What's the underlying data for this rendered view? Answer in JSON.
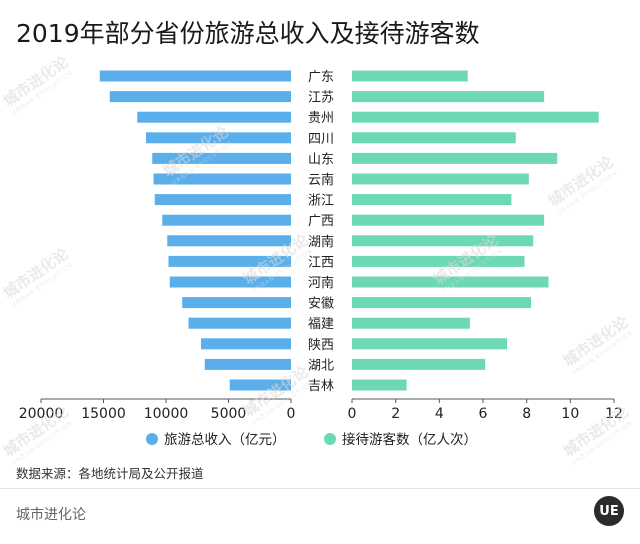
{
  "chart_data": {
    "type": "bar",
    "title": "2019年部分省份旅游总收入及接待游客数",
    "categories": [
      "广东",
      "江苏",
      "贵州",
      "四川",
      "山东",
      "云南",
      "浙江",
      "广西",
      "湖南",
      "江西",
      "河南",
      "安徽",
      "福建",
      "陕西",
      "湖北",
      "吉林"
    ],
    "series": [
      {
        "name": "旅游总收入（亿元）",
        "color": "#5aaeea",
        "values": [
          15300,
          14500,
          12300,
          11600,
          11100,
          11000,
          10900,
          10300,
          9900,
          9800,
          9700,
          8700,
          8200,
          7200,
          6900,
          4900
        ],
        "xlim": [
          0,
          20000
        ],
        "ticks": [
          "20000",
          "15000",
          "10000",
          "5000",
          "0"
        ]
      },
      {
        "name": "接待游客数（亿人次）",
        "color": "#6dd9b2",
        "values": [
          5.3,
          8.8,
          11.3,
          7.5,
          9.4,
          8.1,
          7.3,
          8.8,
          8.3,
          7.9,
          9.0,
          8.2,
          5.4,
          7.1,
          6.1,
          2.5
        ],
        "xlim": [
          0,
          12
        ],
        "ticks": [
          "0",
          "2",
          "4",
          "6",
          "8",
          "10",
          "12"
        ]
      }
    ],
    "legend_placement": "bottom",
    "grid": false
  },
  "source": "数据来源：各地统计局及公开报道",
  "brand": "城市进化论",
  "logo_text": "UE",
  "watermark": {
    "text": "城市进化论",
    "subtext": "URBAN EVOLUTION"
  }
}
